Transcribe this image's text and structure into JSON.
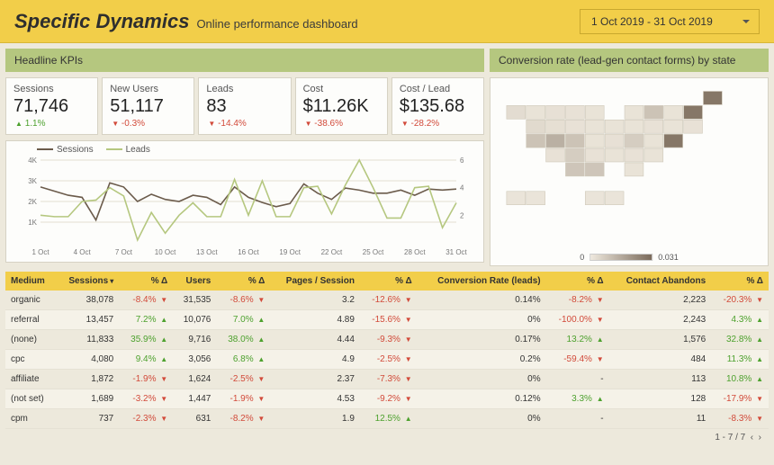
{
  "header": {
    "title": "Specific Dynamics",
    "subtitle": "Online performance dashboard",
    "date_range": "1 Oct 2019 - 31 Oct 2019"
  },
  "colors": {
    "accent_yellow": "#f2ce49",
    "accent_green": "#b5c77f",
    "bg": "#ede9dc",
    "card_bg": "#fdfdfb",
    "up": "#4da12e",
    "down": "#d24a3a",
    "series_sessions": "#6b5b4b",
    "series_leads": "#b5c77f",
    "gridline": "#e3dfd2",
    "map_low": "#efe9de",
    "map_high": "#7a6a5a"
  },
  "kpi_section_title": "Headline KPIs",
  "kpis": [
    {
      "label": "Sessions",
      "value": "71,746",
      "delta": "1.1%",
      "dir": "up"
    },
    {
      "label": "New Users",
      "value": "51,117",
      "delta": "-0.3%",
      "dir": "down"
    },
    {
      "label": "Leads",
      "value": "83",
      "delta": "-14.4%",
      "dir": "down"
    },
    {
      "label": "Cost",
      "value": "$11.26K",
      "delta": "-38.6%",
      "dir": "down"
    },
    {
      "label": "Cost / Lead",
      "value": "$135.68",
      "delta": "-28.2%",
      "dir": "down"
    }
  ],
  "timeseries": {
    "type": "dual-axis-line",
    "legend": {
      "sessions": "Sessions",
      "leads": "Leads"
    },
    "x_labels": [
      "1 Oct",
      "4 Oct",
      "7 Oct",
      "10 Oct",
      "13 Oct",
      "16 Oct",
      "19 Oct",
      "22 Oct",
      "25 Oct",
      "28 Oct",
      "31 Oct"
    ],
    "y_left": {
      "min": 0,
      "max": 4000,
      "step": 1000,
      "label_fmt": "K"
    },
    "y_right": {
      "min": 0,
      "max": 6,
      "step": 2
    },
    "sessions": [
      2700,
      2500,
      2300,
      2200,
      1100,
      2900,
      2700,
      2000,
      2350,
      2100,
      2000,
      2300,
      2200,
      1850,
      2700,
      2200,
      1950,
      1750,
      1900,
      2850,
      2400,
      2100,
      2650,
      2550,
      2400,
      2400,
      2550,
      2300,
      2600,
      2550,
      2600
    ],
    "leads": [
      2.0,
      1.9,
      1.9,
      3.0,
      3.1,
      4.0,
      3.4,
      0.2,
      2.2,
      0.7,
      2.0,
      2.9,
      1.9,
      1.9,
      4.6,
      2.0,
      4.5,
      1.9,
      1.9,
      4.0,
      4.1,
      2.1,
      4.2,
      6.0,
      4.0,
      1.8,
      1.8,
      4.0,
      4.1,
      1.1,
      2.9
    ],
    "title_fontsize": 10
  },
  "map": {
    "section_title": "Conversion rate (lead-gen contact forms) by state",
    "type": "choropleth",
    "scale_min_label": "0",
    "scale_max_label": "0.031",
    "background": "#fdfdfb",
    "fill_low": "#efe9de",
    "fill_high": "#7a6a5a",
    "highlight_states": [
      "NV 0.012",
      "NM 0.020",
      "TX 0.014",
      "TN 0.010",
      "CA 0.006",
      "WA 0.008",
      "VT 0.031"
    ]
  },
  "table": {
    "columns": [
      "Medium",
      "Sessions",
      "% Δ",
      "Users",
      "% Δ",
      "Pages / Session",
      "% Δ",
      "Conversion Rate (leads)",
      "% Δ",
      "Contact Abandons",
      "% Δ"
    ],
    "sort_col": "Sessions",
    "rows": [
      [
        "organic",
        "38,078",
        "-8.4%",
        "down",
        "31,535",
        "-8.6%",
        "down",
        "3.2",
        "-12.6%",
        "down",
        "0.14%",
        "-8.2%",
        "down",
        "2,223",
        "-20.3%",
        "down"
      ],
      [
        "referral",
        "13,457",
        "7.2%",
        "up",
        "10,076",
        "7.0%",
        "up",
        "4.89",
        "-15.6%",
        "down",
        "0%",
        "-100.0%",
        "down",
        "2,243",
        "4.3%",
        "up"
      ],
      [
        "(none)",
        "11,833",
        "35.9%",
        "up",
        "9,716",
        "38.0%",
        "up",
        "4.44",
        "-9.3%",
        "down",
        "0.17%",
        "13.2%",
        "up",
        "1,576",
        "32.8%",
        "up"
      ],
      [
        "cpc",
        "4,080",
        "9.4%",
        "up",
        "3,056",
        "6.8%",
        "up",
        "4.9",
        "-2.5%",
        "down",
        "0.2%",
        "-59.4%",
        "down",
        "484",
        "11.3%",
        "up"
      ],
      [
        "affiliate",
        "1,872",
        "-1.9%",
        "down",
        "1,624",
        "-2.5%",
        "down",
        "2.37",
        "-7.3%",
        "down",
        "0%",
        "-",
        "",
        "113",
        "10.8%",
        "up"
      ],
      [
        "(not set)",
        "1,689",
        "-3.2%",
        "down",
        "1,447",
        "-1.9%",
        "down",
        "4.53",
        "-9.2%",
        "down",
        "0.12%",
        "3.3%",
        "up",
        "128",
        "-17.9%",
        "down"
      ],
      [
        "cpm",
        "737",
        "-2.3%",
        "down",
        "631",
        "-8.2%",
        "down",
        "1.9",
        "12.5%",
        "up",
        "0%",
        "-",
        "",
        "11",
        "-8.3%",
        "down"
      ]
    ],
    "pager": "1 - 7 / 7"
  }
}
